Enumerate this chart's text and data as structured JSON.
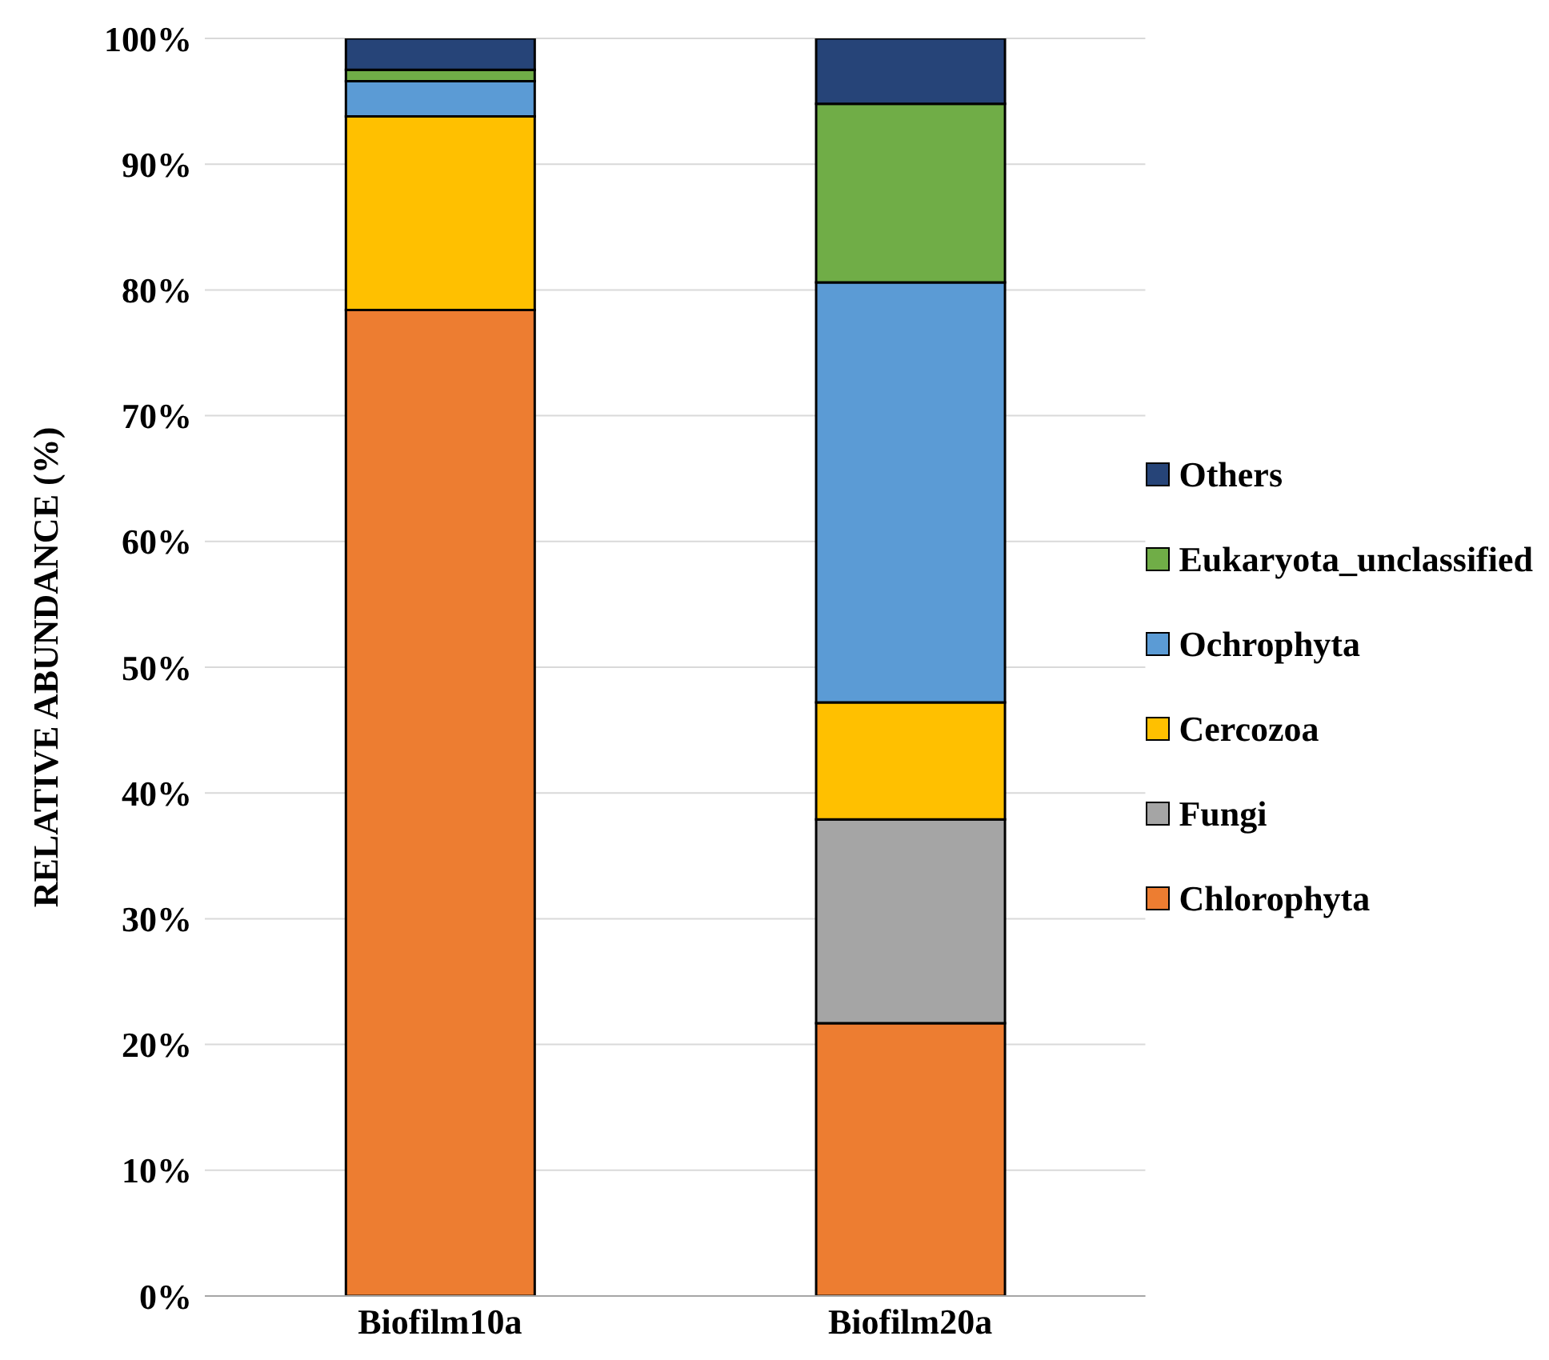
{
  "chart_data": {
    "type": "bar",
    "stacked": true,
    "ylabel": "RELATIVE ABUNDANCE (%)",
    "categories": [
      "Biofilm10a",
      "Biofilm20a"
    ],
    "series": [
      {
        "name": "Chlorophyta",
        "color": "#ed7d31",
        "values": [
          78.4,
          21.7
        ]
      },
      {
        "name": "Fungi",
        "color": "#a5a5a5",
        "values": [
          0,
          16.2
        ]
      },
      {
        "name": "Cercozoa",
        "color": "#ffc000",
        "values": [
          15.4,
          9.3
        ]
      },
      {
        "name": "Ochrophyta",
        "color": "#5b9bd5",
        "values": [
          2.8,
          33.4
        ]
      },
      {
        "name": "Eukaryota_unclassified",
        "color": "#70ad47",
        "values": [
          0.9,
          14.2
        ]
      },
      {
        "name": "Others",
        "color": "#264478",
        "values": [
          2.5,
          5.2
        ]
      }
    ],
    "ylim": [
      0,
      100
    ],
    "yticks": [
      {
        "value": 0,
        "label": "0%"
      },
      {
        "value": 10,
        "label": "10%"
      },
      {
        "value": 20,
        "label": "20%"
      },
      {
        "value": 30,
        "label": "30%"
      },
      {
        "value": 40,
        "label": "40%"
      },
      {
        "value": 50,
        "label": "50%"
      },
      {
        "value": 60,
        "label": "60%"
      },
      {
        "value": 70,
        "label": "70%"
      },
      {
        "value": 80,
        "label": "80%"
      },
      {
        "value": 90,
        "label": "90%"
      },
      {
        "value": 100,
        "label": "100%"
      }
    ],
    "grid": "y",
    "legend": "right"
  }
}
